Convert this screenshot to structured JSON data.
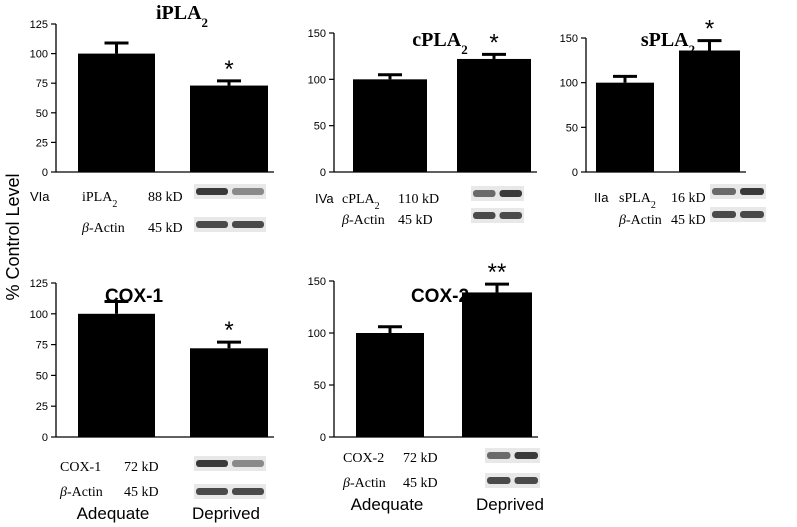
{
  "figure": {
    "ylabel": "% Control Level",
    "xcategories": [
      "Adequate",
      "Deprived"
    ],
    "sig_marks": [
      "*",
      "**"
    ]
  },
  "chart_data": [
    {
      "type": "bar",
      "title": "iPLA",
      "title_sub": "2",
      "categories": [
        "Adequate",
        "Deprived"
      ],
      "values": [
        100,
        73
      ],
      "errors": [
        9,
        4
      ],
      "ylim": [
        0,
        125
      ],
      "yticks": [
        0,
        25,
        50,
        75,
        100,
        125
      ],
      "significance": [
        "",
        "*"
      ],
      "ylabel": "% Control Level",
      "blot": {
        "row1": {
          "prefix": "VIa",
          "label": "iPLA",
          "sub": "2",
          "size": "88 kD"
        },
        "row2": {
          "greek": "β",
          "label": "-Actin",
          "size": "45 kD"
        }
      }
    },
    {
      "type": "bar",
      "title": "cPLA",
      "title_sub": "2",
      "categories": [
        "Adequate",
        "Deprived"
      ],
      "values": [
        100,
        122
      ],
      "errors": [
        5,
        5
      ],
      "ylim": [
        0,
        150
      ],
      "yticks": [
        0,
        50,
        100,
        150
      ],
      "significance": [
        "",
        "*"
      ],
      "blot": {
        "row1": {
          "prefix": "IVa",
          "label": "cPLA",
          "sub": "2",
          "size": "110 kD"
        },
        "row2": {
          "greek": "β",
          "label": "-Actin",
          "size": "45 kD"
        }
      }
    },
    {
      "type": "bar",
      "title": "sPLA",
      "title_sub": "2",
      "categories": [
        "Adequate",
        "Deprived"
      ],
      "values": [
        100,
        136
      ],
      "errors": [
        7,
        11
      ],
      "ylim": [
        0,
        150
      ],
      "yticks": [
        0,
        50,
        100,
        150
      ],
      "significance": [
        "",
        "*"
      ],
      "blot": {
        "row1": {
          "prefix": "IIa",
          "label": "sPLA",
          "sub": "2",
          "size": "16 kD"
        },
        "row2": {
          "greek": "β",
          "label": "-Actin",
          "size": "45 kD"
        }
      }
    },
    {
      "type": "bar",
      "title": "COX-1",
      "categories": [
        "Adequate",
        "Deprived"
      ],
      "values": [
        100,
        72
      ],
      "errors": [
        10,
        5
      ],
      "ylim": [
        0,
        125
      ],
      "yticks": [
        0,
        25,
        50,
        75,
        100,
        125
      ],
      "significance": [
        "",
        "*"
      ],
      "blot": {
        "row1": {
          "prefix": "",
          "label": "COX-1",
          "sub": "",
          "size": "72 kD"
        },
        "row2": {
          "greek": "β",
          "label": "-Actin",
          "size": "45 kD"
        }
      }
    },
    {
      "type": "bar",
      "title": "COX-2",
      "categories": [
        "Adequate",
        "Deprived"
      ],
      "values": [
        100,
        139
      ],
      "errors": [
        6,
        8
      ],
      "ylim": [
        0,
        150
      ],
      "yticks": [
        0,
        50,
        100,
        150
      ],
      "significance": [
        "",
        "**"
      ],
      "blot": {
        "row1": {
          "prefix": "",
          "label": "COX-2",
          "sub": "",
          "size": "72 kD"
        },
        "row2": {
          "greek": "β",
          "label": "-Actin",
          "size": "45 kD"
        }
      }
    }
  ]
}
